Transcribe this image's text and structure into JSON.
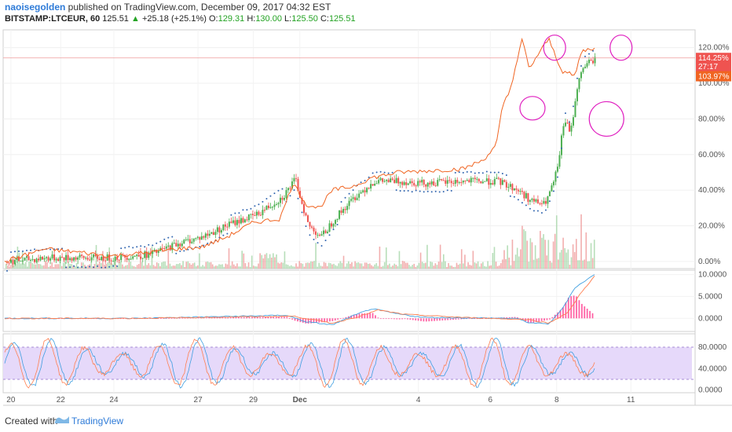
{
  "header": {
    "author": "naoisegolden",
    "published": " published on TradingView.com, December 09, 2017 04:32 EST",
    "symbol": "BITSTAMP:LTCEUR, 60",
    "last": "125.51",
    "arrow": "▲",
    "change": "+25.18 (+25.1%)",
    "o_label": "O:",
    "o_val": "129.31",
    "h_label": "H:",
    "h_val": "130.00",
    "l_label": "L:",
    "l_val": "125.50",
    "c_label": "C:",
    "c_val": "125.51"
  },
  "footer": {
    "created": "Created with",
    "brand": "TradingView"
  },
  "colors": {
    "up": "#4caf50",
    "down": "#ef5350",
    "compare": "#f06421",
    "sar": "#3367b0",
    "annotation": "#e020c0",
    "rsi_band": "#e6d9fa",
    "macd": "#3f9fe0",
    "signal": "#ff7f50",
    "hist": "#ff3c8e"
  },
  "chart_data": [
    {
      "type": "candlestick",
      "panel": "main",
      "y_axis_labels": [
        "120.00%",
        "100.00%",
        "80.00%",
        "60.00%",
        "40.00%",
        "20.00%",
        "0.00%"
      ],
      "ylim": [
        -4,
        130
      ],
      "x_tick_labels": [
        "20",
        "22",
        "24",
        "27",
        "29",
        "Dec",
        "4",
        "6",
        "8",
        "11"
      ],
      "price_tags": [
        {
          "text": "114.25%",
          "value": 114.25,
          "color": "#ef5350"
        },
        {
          "text": "27:17",
          "value": 109.5,
          "color": "#ef5350"
        },
        {
          "text": "103.97%",
          "value": 103.97,
          "color": "#f06421"
        }
      ],
      "price_keys": [
        [
          0,
          0
        ],
        [
          0.06,
          2
        ],
        [
          0.12,
          2
        ],
        [
          0.16,
          2
        ],
        [
          0.22,
          4
        ],
        [
          0.26,
          10
        ],
        [
          0.3,
          14
        ],
        [
          0.34,
          21
        ],
        [
          0.38,
          26
        ],
        [
          0.42,
          36
        ],
        [
          0.44,
          46
        ],
        [
          0.46,
          20
        ],
        [
          0.48,
          14
        ],
        [
          0.5,
          24
        ],
        [
          0.53,
          36
        ],
        [
          0.56,
          45
        ],
        [
          0.6,
          45
        ],
        [
          0.64,
          44
        ],
        [
          0.7,
          45
        ],
        [
          0.75,
          45
        ],
        [
          0.78,
          40
        ],
        [
          0.8,
          34
        ],
        [
          0.82,
          32
        ],
        [
          0.83,
          40
        ],
        [
          0.84,
          52
        ],
        [
          0.85,
          80
        ],
        [
          0.86,
          72
        ],
        [
          0.87,
          98
        ],
        [
          0.88,
          110
        ],
        [
          0.9,
          114
        ]
      ],
      "compare_keys": [
        [
          0,
          0
        ],
        [
          0.06,
          7
        ],
        [
          0.12,
          5
        ],
        [
          0.16,
          3
        ],
        [
          0.22,
          5
        ],
        [
          0.26,
          7
        ],
        [
          0.3,
          8
        ],
        [
          0.34,
          14
        ],
        [
          0.38,
          22
        ],
        [
          0.42,
          24
        ],
        [
          0.44,
          44
        ],
        [
          0.46,
          32
        ],
        [
          0.48,
          30
        ],
        [
          0.5,
          40
        ],
        [
          0.53,
          42
        ],
        [
          0.56,
          47
        ],
        [
          0.6,
          50
        ],
        [
          0.65,
          51
        ],
        [
          0.7,
          52
        ],
        [
          0.73,
          57
        ],
        [
          0.75,
          65
        ],
        [
          0.76,
          88
        ],
        [
          0.77,
          95
        ],
        [
          0.79,
          125
        ],
        [
          0.8,
          108
        ],
        [
          0.81,
          114
        ],
        [
          0.83,
          125
        ],
        [
          0.85,
          107
        ],
        [
          0.87,
          104
        ],
        [
          0.88,
          118
        ],
        [
          0.9,
          120
        ]
      ],
      "annotations": [
        {
          "type": "circle",
          "x": 0.765,
          "y": 86
        },
        {
          "type": "circle",
          "x": 0.797,
          "y": 120
        },
        {
          "type": "circle",
          "x": 0.872,
          "y": 80
        },
        {
          "type": "circle",
          "x": 0.893,
          "y": 120
        }
      ]
    },
    {
      "type": "macd",
      "panel": "macd",
      "y_axis_labels": [
        "10.0000",
        "5.0000",
        "0.0000"
      ],
      "ylim": [
        -3,
        11
      ],
      "macd_keys": [
        [
          0,
          0
        ],
        [
          0.2,
          0
        ],
        [
          0.43,
          0.7
        ],
        [
          0.46,
          -0.8
        ],
        [
          0.5,
          -1.5
        ],
        [
          0.53,
          0.5
        ],
        [
          0.56,
          2.2
        ],
        [
          0.6,
          1
        ],
        [
          0.64,
          0.2
        ],
        [
          0.7,
          0.1
        ],
        [
          0.78,
          0
        ],
        [
          0.8,
          -1
        ],
        [
          0.83,
          -1.3
        ],
        [
          0.85,
          2
        ],
        [
          0.87,
          7
        ],
        [
          0.9,
          10
        ]
      ],
      "signal_keys": [
        [
          0,
          0
        ],
        [
          0.2,
          0
        ],
        [
          0.44,
          0.5
        ],
        [
          0.47,
          -0.3
        ],
        [
          0.5,
          -1.1
        ],
        [
          0.54,
          0.4
        ],
        [
          0.57,
          1.9
        ],
        [
          0.61,
          0.9
        ],
        [
          0.7,
          0.2
        ],
        [
          0.8,
          -0.3
        ],
        [
          0.83,
          -1.1
        ],
        [
          0.86,
          1.4
        ],
        [
          0.88,
          6
        ],
        [
          0.9,
          9.6
        ]
      ]
    },
    {
      "type": "line",
      "panel": "stoch_rsi",
      "y_axis_labels": [
        "80.0000",
        "40.0000",
        "0.0000"
      ],
      "ylim": [
        -5,
        105
      ],
      "bands": [
        20,
        80
      ]
    }
  ]
}
